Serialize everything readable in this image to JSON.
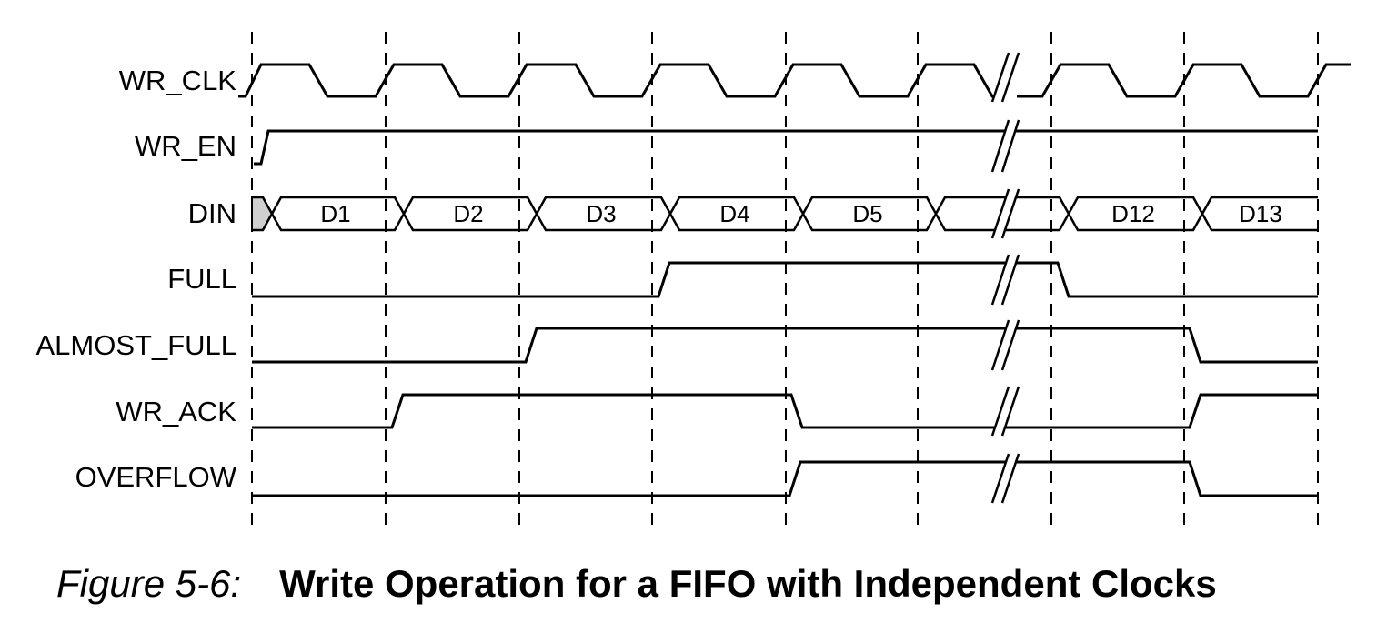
{
  "diagram": {
    "type": "timing-diagram",
    "signals": [
      {
        "name": "WR_CLK",
        "kind": "clock"
      },
      {
        "name": "WR_EN",
        "kind": "level"
      },
      {
        "name": "DIN",
        "kind": "bus"
      },
      {
        "name": "FULL",
        "kind": "level"
      },
      {
        "name": "ALMOST_FULL",
        "kind": "level"
      },
      {
        "name": "WR_ACK",
        "kind": "level"
      },
      {
        "name": "OVERFLOW",
        "kind": "level"
      }
    ],
    "din_values": [
      "D1",
      "D2",
      "D3",
      "D4",
      "D5",
      "",
      "D12",
      "D13"
    ],
    "break_marker": "//",
    "grid_style": "dashed"
  },
  "caption": {
    "number": "Figure 5-6:",
    "title": "Write Operation for a FIFO with Independent Clocks"
  }
}
